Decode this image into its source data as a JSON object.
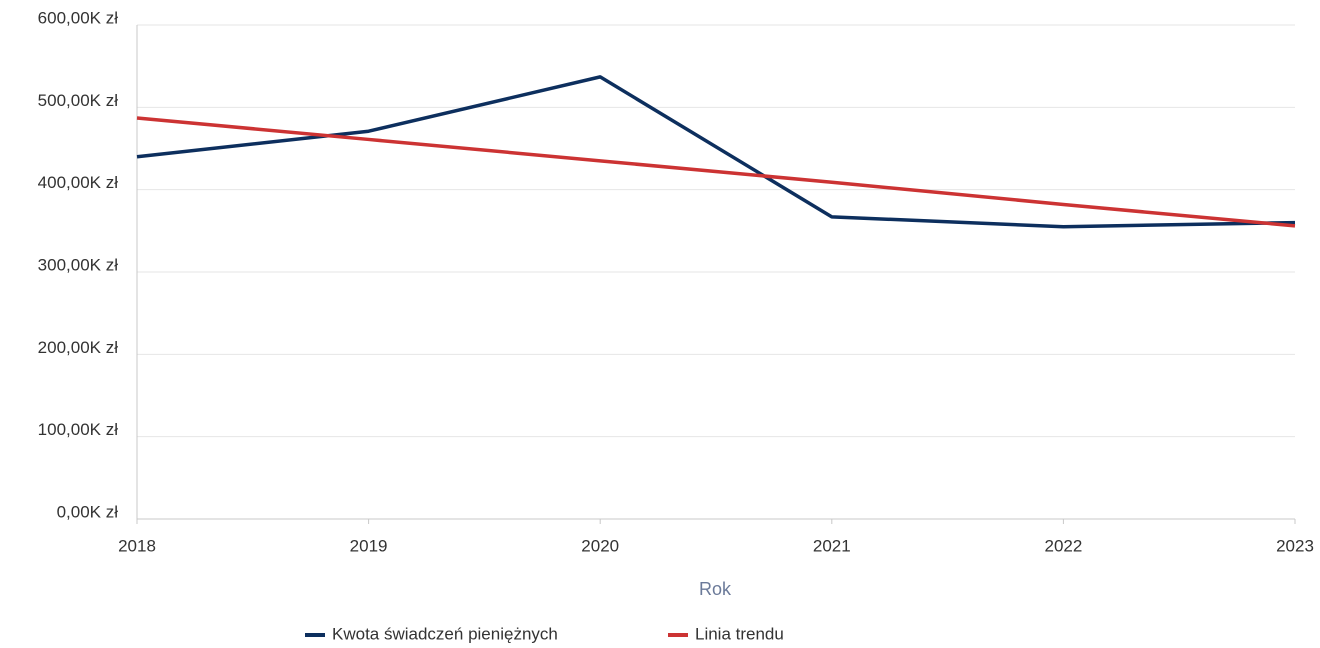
{
  "chart_data": {
    "type": "line",
    "x_label": "Rok",
    "x": [
      2018,
      2019,
      2020,
      2021,
      2022,
      2023
    ],
    "xlim": [
      2018,
      2023
    ],
    "xticks": [
      2018,
      2019,
      2020,
      2021,
      2022,
      2023
    ],
    "ylim": [
      0,
      600000
    ],
    "yticks": [
      {
        "value": 0,
        "label": "0,00K zł"
      },
      {
        "value": 100000,
        "label": "100,00K zł"
      },
      {
        "value": 200000,
        "label": "200,00K zł"
      },
      {
        "value": 300000,
        "label": "300,00K zł"
      },
      {
        "value": 400000,
        "label": "400,00K zł"
      },
      {
        "value": 500000,
        "label": "500,00K zł"
      },
      {
        "value": 600000,
        "label": "600,00K zł"
      }
    ],
    "grid": true,
    "legend": "bottom",
    "series": [
      {
        "name": "Kwota świadczeń pieniężnych",
        "color": "#0d2f5e",
        "values": [
          440000,
          471000,
          537000,
          367000,
          355000,
          360000
        ]
      },
      {
        "name": "Linia trendu",
        "color": "#cc3333",
        "values": [
          487000,
          461000,
          435000,
          409000,
          382000,
          356000
        ]
      }
    ]
  }
}
